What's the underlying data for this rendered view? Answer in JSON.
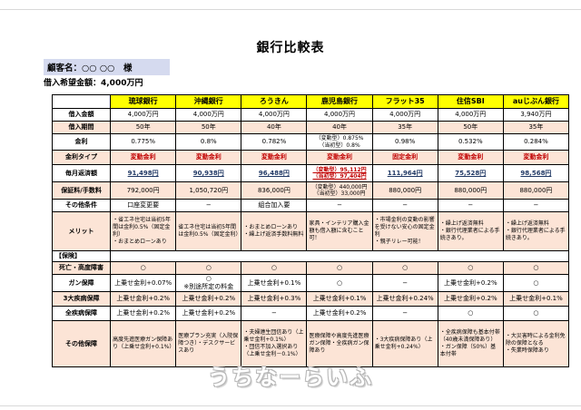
{
  "page": {
    "title": "銀行比較表",
    "customer_label": "顧客名：○○ ○○　様",
    "loan_label": "借入希望金額：4,000万円",
    "footer_logo": "うちなーらいふ"
  },
  "colors": {
    "header_bg": "#ffff00",
    "row_alt_bg": "#fce4d6",
    "customer_bg": "#d5daef",
    "rate_type_color": "#c00000",
    "monthly_color": "#203864"
  },
  "table": {
    "banks": [
      "琉球銀行",
      "沖縄銀行",
      "ろうきん",
      "鹿児島銀行",
      "フラット35",
      "住信SBI",
      "auじぶん銀行"
    ],
    "rows": [
      {
        "label": "借入金額",
        "kind": "r-h13",
        "cells": [
          "4,000万円",
          "4,000万円",
          "4,000万円",
          "4,000万円",
          "4,000万円",
          "4,000万円",
          "3,940万円"
        ]
      },
      {
        "label": "借入期間",
        "kind": "r-h13",
        "cells": [
          "50年",
          "50年",
          "40年",
          "40年",
          "35年",
          "50年",
          "35年"
        ]
      },
      {
        "label": "金利",
        "kind": "r-rate r-h17",
        "cells": [
          "0.775%",
          "0.8%",
          "0.782%",
          "（変動型）0.875%\n（当初型）0.8%",
          "0.98%",
          "0.532%",
          "0.284%"
        ]
      },
      {
        "label": "金利タイプ",
        "kind": "r-ratetype r-h15",
        "cells": [
          "変動金利",
          "変動金利",
          "変動金利",
          "変動金利",
          "固定金利",
          "変動金利",
          "変動金利"
        ]
      },
      {
        "label": "毎月返済額",
        "kind": "r-monthly r-h18",
        "cells": [
          "91,498円",
          "90,938円",
          "96,488円",
          "（変動型）95,112円\n（当初型）97,404円",
          "111,964円",
          "75,528円",
          "98,568円"
        ]
      },
      {
        "label": "保証料/手数料",
        "kind": "r-fee r-h18",
        "cells": [
          "792,000円",
          "1,050,720円",
          "836,000円",
          "（変動型）440,000円\n（当初型）33,000円",
          "880,000円",
          "880,000円",
          "880,000円"
        ]
      },
      {
        "label": "その他条件",
        "kind": "r-h13",
        "cells": [
          "口座変更要",
          "−",
          "組合加入要",
          "−",
          "−",
          "−",
          "−"
        ]
      },
      {
        "label": "メリット",
        "kind": "r-merit",
        "cells": [
          "・省エネ住宅は当初5年間は金利0.5%（固定金利）\n・おまとめローンあり",
          "省エネ住宅は当初5年間は金利0.5%（固定金利）",
          "・おまとめローンあり\n・繰上げ返済手数料無料",
          "家具・インテリア購入金額も借入額に含むこと可！",
          "・市場金利の変動の影響を受けない安心の固定金利\n・親子リレー可能！",
          "・繰上げ返済無料\n・銀行代理業者による手続きあり。",
          "・繰上げ返済無料\n・銀行代理業者による手続きあり。"
        ]
      },
      {
        "label": "【保険】",
        "kind": "r-section",
        "section": true,
        "cells": [
          "",
          "",
          "",
          "",
          "",
          "",
          ""
        ]
      },
      {
        "label": "死亡・高度障害",
        "kind": "r-h13",
        "cells": [
          "○",
          "○",
          "○",
          "○",
          "○",
          "○",
          "○"
        ]
      },
      {
        "label": "ガン保障",
        "kind": "r-h18",
        "cells": [
          "上乗せ金利+0.07%",
          "○\n※別途所定の料金",
          "上乗せ金利+0.1%",
          "○",
          "−",
          "上乗せ金利+0.2%",
          "○"
        ]
      },
      {
        "label": "3大疾病保障",
        "kind": "r-h15",
        "cells": [
          "上乗せ金利+0.2%",
          "上乗せ金利+0.2%",
          "上乗せ金利+0.3%",
          "上乗せ金利+0.1%",
          "上乗せ金利+0.24%",
          "上乗せ金利+0.2%",
          "上乗せ金利+0.1%"
        ]
      },
      {
        "label": "全疾病保障",
        "kind": "r-h15",
        "cells": [
          "上乗せ金利+0.2%",
          "上乗せ金利+0.2%",
          "−",
          "上乗せ金利+0.2%",
          "−",
          "○",
          "○"
        ]
      },
      {
        "label": "その他保障",
        "kind": "r-other",
        "cells": [
          "高度先進医療ガン保障あり（上乗せ金利+0.1%）",
          "医療プラン充実（入院保障つき）・デスクサービスあり",
          "・夫婦連生団信あり（上乗せ金利+0.1%）\n・団信不加入選択あり（上乗せ金利－0.1%）",
          "医療保障や高度先進医療ガン保障・全疾病ガン保障あり",
          "・3大疾病保障あり（上乗せ金利+0.24%）",
          "・全疾病保障も基本付帯（40歳未満保障あり）\n・ガン保障（50%）基本付帯",
          "・大災害時による金利免除の保障となる\n・失業時保障あり"
        ]
      }
    ]
  }
}
